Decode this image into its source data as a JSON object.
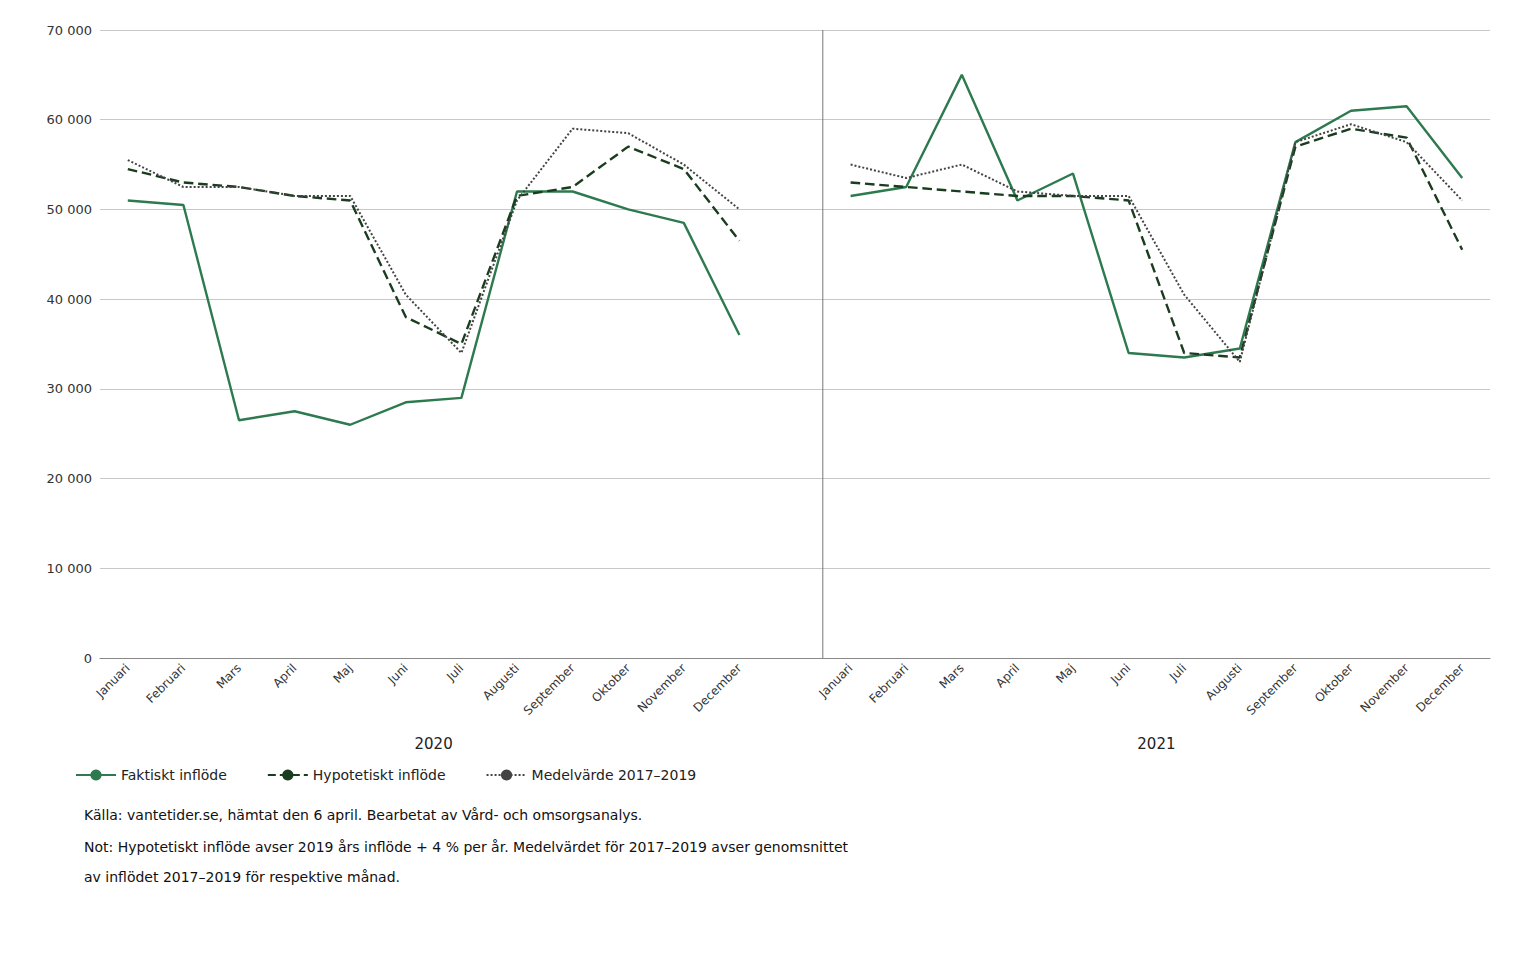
{
  "chart_data": {
    "type": "line",
    "categories": [
      "Januari",
      "Februari",
      "Mars",
      "April",
      "Maj",
      "Juni",
      "Juli",
      "Augusti",
      "September",
      "Oktober",
      "November",
      "December",
      null,
      "Januari",
      "Februari",
      "Mars",
      "April",
      "Maj",
      "Juni",
      "Juli",
      "Augusti",
      "September",
      "Oktober",
      "November",
      "December"
    ],
    "series": [
      {
        "name": "Faktiskt inflöde",
        "color": "#2d7a4f",
        "line_style": "solid",
        "values": [
          51000,
          50500,
          26500,
          27500,
          26000,
          28500,
          29000,
          52000,
          52000,
          50000,
          48500,
          36000,
          null,
          51500,
          52500,
          65000,
          51000,
          54000,
          34000,
          33500,
          34500,
          57500,
          61000,
          61500,
          53500
        ]
      },
      {
        "name": "Hypotetiskt inflöde",
        "color": "#1a3c1f",
        "line_style": "dashed",
        "values": [
          54500,
          53000,
          52500,
          51500,
          51000,
          38000,
          35000,
          51500,
          52500,
          57000,
          54500,
          46500,
          null,
          53000,
          52500,
          52000,
          51500,
          51500,
          51000,
          34000,
          33500,
          57000,
          59000,
          58000,
          45500
        ]
      },
      {
        "name": "Medelvärde 2017–2019",
        "color": "#444444",
        "line_style": "dotted",
        "values": [
          55500,
          52500,
          52500,
          51500,
          51500,
          40500,
          34000,
          51000,
          59000,
          58500,
          55000,
          50000,
          null,
          55000,
          53500,
          55000,
          52000,
          51500,
          51500,
          40500,
          33000,
          57500,
          59500,
          57500,
          51000
        ]
      }
    ],
    "ylim": [
      0,
      70000
    ],
    "yticks": [
      0,
      {
        "value": 10000,
        "label": "10 000"
      },
      {
        "value": 20000,
        "label": "20 000"
      },
      {
        "value": 30000,
        "label": "30 000"
      },
      {
        "value": 40000,
        "label": "40 000"
      },
      {
        "value": 50000,
        "label": "50 000"
      },
      {
        "value": 60000,
        "label": "60 000"
      },
      {
        "value": 70000,
        "label": "70 000"
      }
    ],
    "grid": true,
    "legend": "bottom left",
    "annotations": [
      "2020",
      "2021"
    ],
    "source": "Källa: vantetider.se, hämtat den 6 april. Bearbetat av Vård- och omsorgsanalys.",
    "notes": [
      "Not: Hypotetiskt inflöde avser 2019 års inflöde + 4 % per år. Medelvärdet för 2017–2019 avser genomsnittet",
      "av inflödet 2017–2019 för respektive månad."
    ]
  }
}
